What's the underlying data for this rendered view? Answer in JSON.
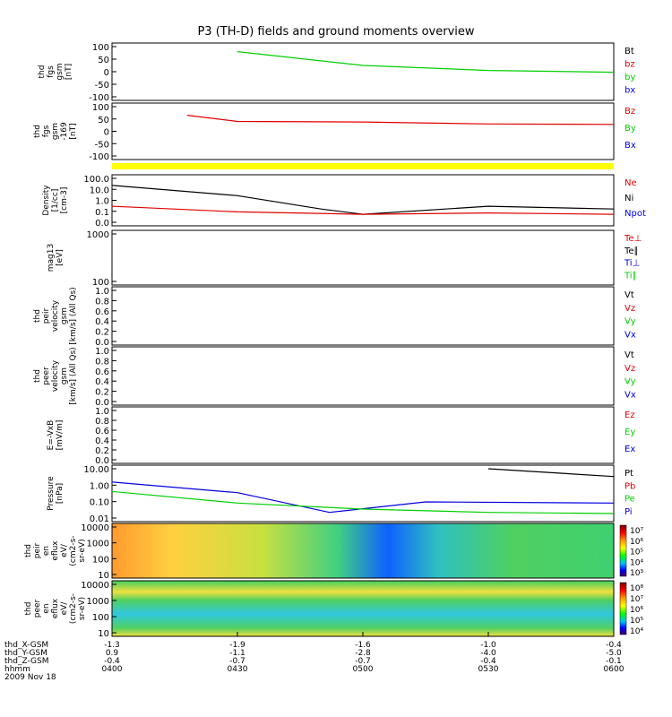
{
  "title": "P3 (TH-D) fields and ground moments overview",
  "colors": {
    "black": "#000000",
    "red": "#e00000",
    "green": "#00d000",
    "blue": "#0000e0",
    "yellow": "#ffff00"
  },
  "panels": [
    {
      "id": "fgs",
      "ylabel": [
        "thd",
        "fgs",
        "gsm",
        "[nT]"
      ],
      "ticks": [
        "100",
        "50",
        "0",
        "-50",
        "-100"
      ],
      "legend": [
        {
          "t": "Bt",
          "c": "#000000"
        },
        {
          "t": "bz",
          "c": "#e00000"
        },
        {
          "t": "by",
          "c": "#00d000"
        },
        {
          "t": "bx",
          "c": "#0000e0"
        }
      ]
    },
    {
      "id": "fgl",
      "ylabel": [
        "thd",
        "fgs",
        "gsm",
        "-169",
        "[nT]"
      ],
      "ticks": [
        "100",
        "50",
        "0",
        "-50",
        "-100"
      ],
      "legend": [
        {
          "t": "Bz",
          "c": "#e00000"
        },
        {
          "t": "By",
          "c": "#00d000"
        },
        {
          "t": "Bx",
          "c": "#0000e0"
        }
      ]
    },
    {
      "id": "density",
      "ylabel": [
        "Density",
        "[1/cc]",
        "[cm-3]"
      ],
      "ticks": [
        "100.0",
        "10.0",
        "1.0",
        "0.1",
        "0.0"
      ],
      "legend": [
        {
          "t": "Ne",
          "c": "#e00000"
        },
        {
          "t": "Ni",
          "c": "#000000"
        },
        {
          "t": "Npot",
          "c": "#0000e0"
        }
      ]
    },
    {
      "id": "temp",
      "ylabel": [
        "mag13",
        "[eV]"
      ],
      "ticks": [
        "1000",
        "100"
      ],
      "legend": [
        {
          "t": "Te⊥",
          "c": "#e00000"
        },
        {
          "t": "Te∥",
          "c": "#000000"
        },
        {
          "t": "Ti⊥",
          "c": "#0000e0"
        },
        {
          "t": "Ti∥",
          "c": "#00d000"
        }
      ]
    },
    {
      "id": "peir",
      "ylabel": [
        "thd",
        "peir",
        "velocity",
        "gsm",
        "[km/s] (All Qs)"
      ],
      "ticks": [
        "1.0",
        "0.8",
        "0.6",
        "0.4",
        "0.2",
        "0.0"
      ],
      "legend": [
        {
          "t": "Vt",
          "c": "#000000"
        },
        {
          "t": "Vz",
          "c": "#e00000"
        },
        {
          "t": "Vy",
          "c": "#00d000"
        },
        {
          "t": "Vx",
          "c": "#0000e0"
        }
      ]
    },
    {
      "id": "peer",
      "ylabel": [
        "thd",
        "peer",
        "velocity",
        "gsm",
        "[km/s] (All Qs)"
      ],
      "ticks": [
        "1.0",
        "0.8",
        "0.6",
        "0.4",
        "0.2",
        "0.0"
      ],
      "legend": [
        {
          "t": "Vt",
          "c": "#000000"
        },
        {
          "t": "Vz",
          "c": "#e00000"
        },
        {
          "t": "Vy",
          "c": "#00d000"
        },
        {
          "t": "Vx",
          "c": "#0000e0"
        }
      ]
    },
    {
      "id": "efield",
      "ylabel": [
        "E=-VxB",
        "[mV/m]"
      ],
      "ticks": [
        "1.0",
        "0.8",
        "0.6",
        "0.4",
        "0.2",
        "0.0"
      ],
      "legend": [
        {
          "t": "Ez",
          "c": "#e00000"
        },
        {
          "t": "Ey",
          "c": "#00d000"
        },
        {
          "t": "Ex",
          "c": "#0000e0"
        }
      ]
    },
    {
      "id": "pressure",
      "ylabel": [
        "Pressure",
        "[nPa]"
      ],
      "ticks": [
        "10.00",
        "1.00",
        "0.10",
        "0.01"
      ],
      "legend": [
        {
          "t": "Pt",
          "c": "#000000"
        },
        {
          "t": "Pb",
          "c": "#e00000"
        },
        {
          "t": "Pe",
          "c": "#00d000"
        },
        {
          "t": "Pi",
          "c": "#0000e0"
        }
      ]
    },
    {
      "id": "peir_spec",
      "ylabel": [
        "thd",
        "peir",
        "en",
        "eflux",
        "eV/",
        "(cm2-s-",
        "sr-eV)"
      ],
      "ticks": [
        "10000",
        "1000",
        "100",
        "10"
      ],
      "colorbar": [
        "10⁷",
        "10⁶",
        "10⁵",
        "10⁴",
        "10³"
      ]
    },
    {
      "id": "peer_spec",
      "ylabel": [
        "thd",
        "peer",
        "en",
        "eflux",
        "eV/",
        "(cm2-s-",
        "sr-eV)"
      ],
      "ticks": [
        "10000",
        "1000",
        "100",
        "10"
      ],
      "colorbar": [
        "10⁸",
        "10⁷",
        "10⁶",
        "10⁵",
        "10⁴"
      ]
    }
  ],
  "x_axis": {
    "row_labels": [
      "thd_X-GSM",
      "thd_Y-GSM",
      "thd_Z-GSM",
      "hhmm",
      "2009 Nov 18"
    ],
    "ticks": [
      {
        "x": "-1.3",
        "y": "0.9",
        "z": "-0.4",
        "t": "0400"
      },
      {
        "x": "-1.9",
        "y": "-1.1",
        "z": "-0.7",
        "t": "0430"
      },
      {
        "x": "-1.6",
        "y": "-2.8",
        "z": "-0.7",
        "t": "0500"
      },
      {
        "x": "-1.0",
        "y": "-4.0",
        "z": "-0.4",
        "t": "0530"
      },
      {
        "x": "-0.4",
        "y": "-5.0",
        "z": "-0.1",
        "t": "0600"
      }
    ]
  },
  "chart_data": {
    "type": "line",
    "title": "P3 (TH-D) fields and ground moments overview",
    "x_label": "hhmm",
    "x_range": [
      "0400",
      "0600"
    ],
    "series": [
      {
        "name": "by",
        "panel": "fgs",
        "x": [
          "0400",
          "0430",
          "0500",
          "0530",
          "0600"
        ],
        "values": [
          null,
          80,
          25,
          5,
          -2
        ]
      },
      {
        "name": "Bz",
        "panel": "fgl",
        "x": [
          "0418",
          "0430",
          "0500",
          "0530",
          "0600"
        ],
        "values": [
          65,
          40,
          38,
          30,
          28
        ]
      },
      {
        "name": "Ni",
        "panel": "density",
        "x": [
          "0400",
          "0430",
          "0450",
          "0500",
          "0530",
          "0600"
        ],
        "values": [
          30,
          5,
          0.5,
          0.2,
          0.8,
          0.5
        ]
      },
      {
        "name": "Ne",
        "panel": "density",
        "x": [
          "0400",
          "0430",
          "0500",
          "0530",
          "0600"
        ],
        "values": [
          0.8,
          0.3,
          0.2,
          0.25,
          0.2
        ]
      },
      {
        "name": "Pt",
        "panel": "pressure",
        "x": [
          "0530",
          "0600"
        ],
        "values": [
          10,
          3
        ]
      },
      {
        "name": "Pi",
        "panel": "pressure",
        "x": [
          "0400",
          "0430",
          "0452",
          "0515",
          "0600"
        ],
        "values": [
          1.3,
          0.25,
          0.012,
          0.06,
          0.05
        ]
      },
      {
        "name": "Pe",
        "panel": "pressure",
        "x": [
          "0400",
          "0430",
          "0500",
          "0530",
          "0600"
        ],
        "values": [
          0.3,
          0.05,
          0.02,
          0.012,
          0.01
        ]
      }
    ]
  }
}
